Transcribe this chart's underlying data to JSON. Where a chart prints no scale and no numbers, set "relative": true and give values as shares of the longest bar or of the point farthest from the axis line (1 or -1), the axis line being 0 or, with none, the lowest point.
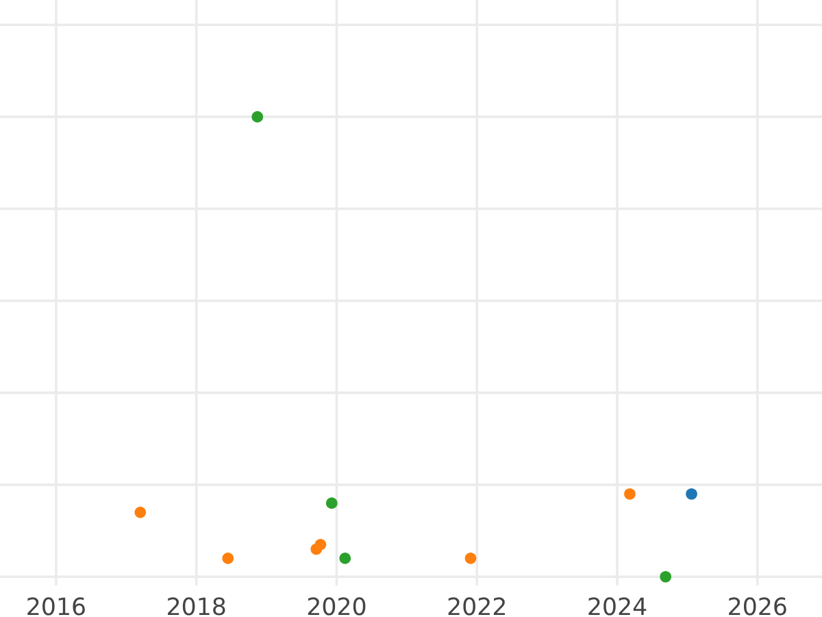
{
  "chart_data": {
    "type": "scatter",
    "relative": true,
    "series": [
      {
        "color": "#1f77b4",
        "x": [
          2025.06
        ],
        "values": [
          0.18
        ]
      },
      {
        "color": "#ff7f0e",
        "x": [
          2017.2,
          2018.45,
          2019.71,
          2019.77,
          2021.91,
          2024.18
        ],
        "values": [
          0.14,
          0.04,
          0.06,
          0.07,
          0.04,
          0.18
        ]
      },
      {
        "color": "#2ca02c",
        "x": [
          2018.87,
          2019.93,
          2020.12,
          2024.69
        ],
        "values": [
          1,
          0.16,
          0.04,
          0
        ]
      }
    ],
    "xlim": [
      2015.2,
      2026.92
    ],
    "xticks": [
      2016,
      2018,
      2020,
      2022,
      2024,
      2026
    ],
    "grid": true,
    "marker": "circle",
    "tick_labels": "x"
  }
}
